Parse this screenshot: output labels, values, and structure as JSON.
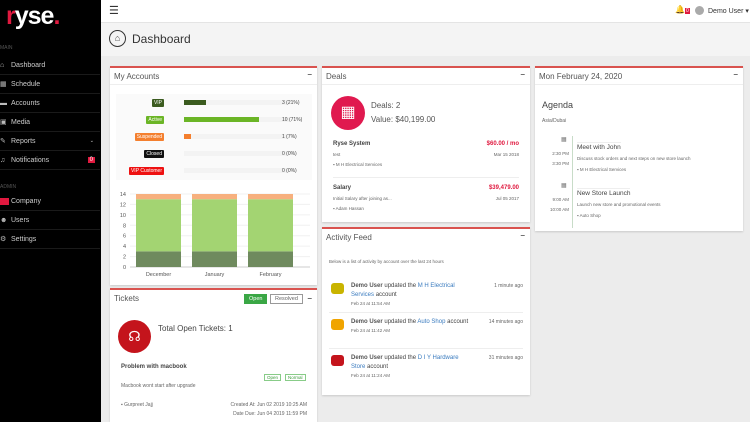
{
  "brand": {
    "logo": "ryse."
  },
  "sidebar": {
    "sections": [
      "MAIN",
      "ADMIN"
    ],
    "items": [
      {
        "label": "Dashboard",
        "icon": "home-icon"
      },
      {
        "label": "Schedule",
        "icon": "calendar-icon"
      },
      {
        "label": "Accounts",
        "icon": "briefcase-icon"
      },
      {
        "label": "Media",
        "icon": "image-icon"
      },
      {
        "label": "Reports",
        "icon": "edit-icon"
      },
      {
        "label": "Notifications",
        "icon": "bell-icon",
        "badge": "0"
      },
      {
        "label": "Company",
        "icon": "building-icon"
      },
      {
        "label": "Users",
        "icon": "users-icon"
      },
      {
        "label": "Settings",
        "icon": "settings-icon"
      }
    ]
  },
  "topbar": {
    "notif_count": "0",
    "user": "Demo User"
  },
  "page": {
    "title": "Dashboard"
  },
  "accounts": {
    "title": "My Accounts",
    "rows": [
      {
        "label": "VIP",
        "count": "3 (21%)",
        "pct": 21,
        "color": "#3b5b1f"
      },
      {
        "label": "Active",
        "count": "10 (71%)",
        "pct": 71,
        "color": "#6bb526"
      },
      {
        "label": "Suspended",
        "count": "1 (7%)",
        "pct": 7,
        "color": "#f47f2e"
      },
      {
        "label": "Closed",
        "count": "0 (0%)",
        "pct": 0,
        "color": "#111111"
      },
      {
        "label": "VIP Customer",
        "count": "0 (0%)",
        "pct": 0,
        "color": "#ee1111"
      }
    ]
  },
  "chart_data": {
    "type": "bar",
    "stacked": true,
    "categories": [
      "December",
      "January",
      "February"
    ],
    "series": [
      {
        "values": [
          3,
          3,
          3
        ],
        "color": "#6f8a5e"
      },
      {
        "values": [
          10,
          10,
          10
        ],
        "color": "#a3d472"
      },
      {
        "values": [
          1,
          1,
          1
        ],
        "color": "#f7b07e"
      }
    ],
    "ylim": [
      0,
      14
    ],
    "yticks": [
      "0",
      "2",
      "4",
      "6",
      "8",
      "10",
      "12",
      "14"
    ]
  },
  "deals": {
    "title": "Deals",
    "count": "Deals: 2",
    "value": "Value: $40,199.00",
    "items": [
      {
        "name": "Ryse System",
        "amount": "$60.00 / mo",
        "desc": "test",
        "date": "Mar 15 2018",
        "account": "M H Electrical Services"
      },
      {
        "name": "Salary",
        "amount": "$39,479.00",
        "desc": "Initial Salary after joining as...",
        "date": "Jul 05 2017",
        "account": "Adam Hassan"
      }
    ]
  },
  "activity": {
    "title": "Activity Feed",
    "intro": "Below is a list of activity by account over the last 24 hours",
    "items": [
      {
        "user": "Demo User",
        "verb": "updated the",
        "account": "M H Electrical Services",
        "suffix": "account",
        "ago": "1 minute ago",
        "time": "Feb 24 at 11:54 AM"
      },
      {
        "user": "Demo User",
        "verb": "updated the",
        "account": "Auto Shop",
        "suffix": "account",
        "ago": "14 minutes ago",
        "time": "Feb 24 at 11:42 AM"
      },
      {
        "user": "Demo User",
        "verb": "updated the",
        "account": "D I Y Hardware Store",
        "suffix": "account",
        "ago": "31 minutes ago",
        "time": "Feb 24 at 11:24 AM"
      }
    ]
  },
  "agenda": {
    "date": "Mon February 24, 2020",
    "title": "Agenda",
    "tz": "Asia/Dubai",
    "events": [
      {
        "start": "2:30 PM",
        "end": "3:30 PM",
        "title": "Meet with John",
        "desc": "Discuss stock orders and next steps on new store launch",
        "account": "M H Electrical Services"
      },
      {
        "start": "9:00 AM",
        "end": "10:00 AM",
        "title": "New Store Launch",
        "desc": "Launch new store and promotional events",
        "account": "Auto Shop"
      }
    ]
  },
  "tickets": {
    "title": "Tickets",
    "open": "Open",
    "resolved": "Resolved",
    "total": "Total Open Tickets: 1",
    "item": {
      "title": "Problem with macbook",
      "desc": "Macbook wont start after upgrade",
      "status": "Open",
      "priority": "Normal",
      "user": "Gurpreet Jajj",
      "created": "Created At: Jun 02 2019 10:25 AM",
      "due": "Date Due: Jun 04 2019 11:59 PM"
    }
  }
}
